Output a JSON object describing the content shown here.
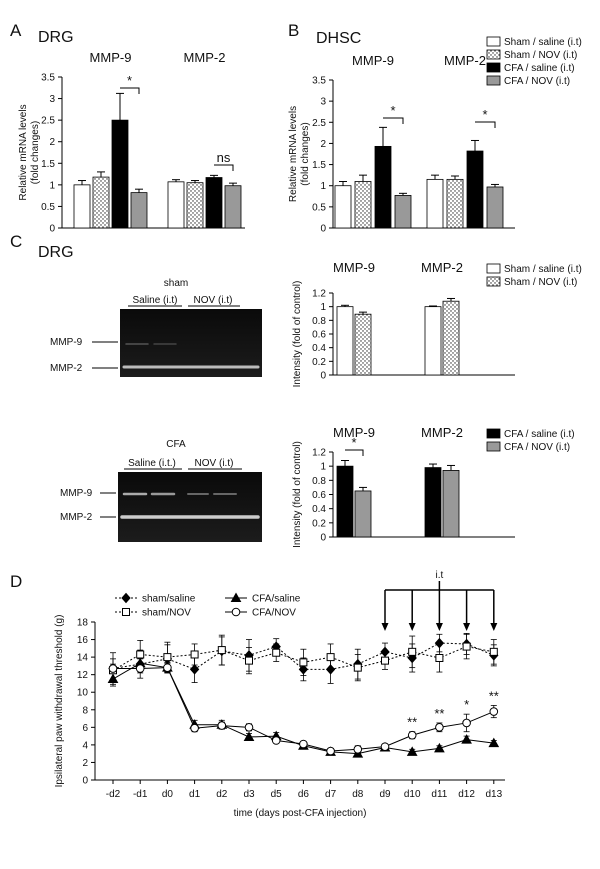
{
  "figure": {
    "panel_labels": [
      "A",
      "B",
      "C",
      "D"
    ],
    "gels": [
      {
        "tissue": "DRG",
        "group": "sham",
        "lanes": [
          "Saline (i.t)",
          "NOV (i.t)"
        ],
        "bands": [
          "MMP-9",
          "MMP-2"
        ]
      },
      {
        "group": "CFA",
        "lanes": [
          "Saline (i.t.)",
          "NOV (i.t)"
        ],
        "bands": [
          "MMP-9",
          "MMP-2"
        ]
      }
    ]
  },
  "chart_data": [
    {
      "type": "bar",
      "title": "DRG",
      "categories": [
        "MMP-9",
        "MMP-2"
      ],
      "ylabel": [
        "Relative mRNA levels",
        "(fold changes)"
      ],
      "series": [
        {
          "name": "Sham / saline (i.t)",
          "color": "#ffffff",
          "values": [
            1.0,
            1.07
          ],
          "errors": [
            0.1,
            0.05
          ]
        },
        {
          "name": "Sham / NOV (i.t)",
          "color": "#ffffff",
          "pattern": "dots",
          "values": [
            1.18,
            1.05
          ],
          "errors": [
            0.12,
            0.05
          ]
        },
        {
          "name": "CFA / saline (i.t)",
          "color": "#000000",
          "values": [
            2.5,
            1.17
          ],
          "errors": [
            0.62,
            0.05
          ]
        },
        {
          "name": "CFA / NOV (i.t)",
          "color": "#999999",
          "values": [
            0.82,
            0.98
          ],
          "errors": [
            0.08,
            0.06
          ]
        }
      ],
      "ylim": [
        0,
        3.5
      ],
      "yticks": [
        0,
        0.5,
        1,
        1.5,
        2,
        2.5,
        3,
        3.5
      ],
      "annotations": [
        "*",
        "ns"
      ],
      "legend": false
    },
    {
      "type": "bar",
      "title": "DHSC",
      "categories": [
        "MMP-9",
        "MMP-2"
      ],
      "ylabel": [
        "Relative mRNA levels",
        "(fold changes)"
      ],
      "series": [
        {
          "name": "Sham / saline (i.t)",
          "color": "#ffffff",
          "values": [
            1.0,
            1.15
          ],
          "errors": [
            0.1,
            0.1
          ]
        },
        {
          "name": "Sham / NOV (i.t)",
          "color": "#ffffff",
          "pattern": "dots",
          "values": [
            1.1,
            1.15
          ],
          "errors": [
            0.15,
            0.08
          ]
        },
        {
          "name": "CFA / saline (i.t)",
          "color": "#000000",
          "values": [
            1.93,
            1.82
          ],
          "errors": [
            0.45,
            0.25
          ]
        },
        {
          "name": "CFA / NOV (i.t)",
          "color": "#999999",
          "values": [
            0.77,
            0.97
          ],
          "errors": [
            0.05,
            0.06
          ]
        }
      ],
      "ylim": [
        0,
        3.5
      ],
      "yticks": [
        0,
        0.5,
        1,
        1.5,
        2,
        2.5,
        3,
        3.5
      ],
      "annotations": [
        "*",
        "*"
      ],
      "legend": true
    },
    {
      "type": "bar",
      "categories": [
        "MMP-9",
        "MMP-2"
      ],
      "ylabel": [
        "Intensity (fold of control)"
      ],
      "series": [
        {
          "name": "Sham / saline (i.t)",
          "color": "#ffffff",
          "values": [
            1.0,
            1.0
          ],
          "errors": [
            0.02,
            0.01
          ]
        },
        {
          "name": "Sham / NOV (i.t)",
          "color": "#ffffff",
          "pattern": "dots",
          "values": [
            0.89,
            1.08
          ],
          "errors": [
            0.03,
            0.04
          ]
        }
      ],
      "ylim": [
        0,
        1.2
      ],
      "yticks": [
        0,
        0.2,
        0.4,
        0.6,
        0.8,
        1,
        1.2
      ],
      "legend": true
    },
    {
      "type": "bar",
      "categories": [
        "MMP-9",
        "MMP-2"
      ],
      "ylabel": [
        "Intensity (fold of control)"
      ],
      "series": [
        {
          "name": "CFA / saline (i.t)",
          "color": "#000000",
          "values": [
            1.0,
            0.98
          ],
          "errors": [
            0.08,
            0.05
          ]
        },
        {
          "name": "CFA / NOV (i.t)",
          "color": "#999999",
          "values": [
            0.65,
            0.94
          ],
          "errors": [
            0.05,
            0.07
          ]
        }
      ],
      "ylim": [
        0,
        1.2
      ],
      "yticks": [
        0,
        0.2,
        0.4,
        0.6,
        0.8,
        1,
        1.2
      ],
      "annotations": [
        "*"
      ],
      "legend": true
    },
    {
      "type": "line",
      "categories": [
        "-d2",
        "-d1",
        "d0",
        "d1",
        "d2",
        "d3",
        "d5",
        "d6",
        "d7",
        "d8",
        "d9",
        "d10",
        "d11",
        "d12",
        "d13"
      ],
      "xlabel": "time (days post-CFA injection)",
      "ylabel": [
        "Ipsilateral paw withdrawal threshold (g)"
      ],
      "series": [
        {
          "name": "sham/saline",
          "color": "#000000",
          "marker": "diamond",
          "dashed": true,
          "values": [
            12.7,
            13.2,
            13.8,
            12.6,
            14.7,
            14.2,
            15.2,
            12.6,
            12.6,
            13.2,
            14.6,
            13.9,
            15.6,
            15.5,
            14.2
          ],
          "errors": [
            1.8,
            1.6,
            1.6,
            1.5,
            1.6,
            1.8,
            0.9,
            1.3,
            1.6,
            1.7,
            1.0,
            1.6,
            1.0,
            1.2,
            1.2
          ]
        },
        {
          "name": "sham/NOV",
          "color": "#000000",
          "marker": "square",
          "dashed": true,
          "values": [
            12.5,
            14.3,
            14.0,
            14.3,
            14.8,
            13.6,
            14.5,
            13.4,
            14.0,
            12.8,
            13.6,
            14.6,
            13.9,
            15.2,
            14.6
          ],
          "errors": [
            1.3,
            1.6,
            1.7,
            1.2,
            1.7,
            1.5,
            1.0,
            1.5,
            1.5,
            1.5,
            1.0,
            1.8,
            1.6,
            1.4,
            1.4
          ]
        },
        {
          "name": "CFA/saline",
          "color": "#000000",
          "marker": "triangle",
          "dashed": false,
          "values": [
            11.5,
            13.3,
            12.8,
            6.3,
            6.3,
            4.9,
            5.0,
            3.9,
            3.2,
            3.0,
            3.7,
            3.2,
            3.6,
            4.6,
            4.2
          ],
          "errors": [
            0.8,
            0.5,
            0.6,
            0.5,
            0.5,
            0.4,
            0.4,
            0.3,
            0.3,
            0.3,
            0.3,
            0.3,
            0.3,
            0.4,
            0.3
          ]
        },
        {
          "name": "CFA/NOV",
          "color": "#000000",
          "marker": "circle",
          "dashed": false,
          "values": [
            12.7,
            12.7,
            12.8,
            5.9,
            6.2,
            6.0,
            4.5,
            4.1,
            3.3,
            3.5,
            3.8,
            5.1,
            6.0,
            6.5,
            7.8
          ],
          "errors": [
            0.5,
            0.5,
            0.5,
            0.4,
            0.4,
            0.4,
            0.3,
            0.3,
            0.3,
            0.4,
            0.3,
            0.4,
            0.5,
            1.0,
            0.7
          ]
        }
      ],
      "ylim": [
        0,
        18
      ],
      "yticks": [
        0,
        2,
        4,
        6,
        8,
        10,
        12,
        14,
        16,
        18
      ],
      "annotations": [
        "**",
        "**",
        "*",
        "**"
      ],
      "arrow_label": "i.t",
      "legend": true
    }
  ]
}
